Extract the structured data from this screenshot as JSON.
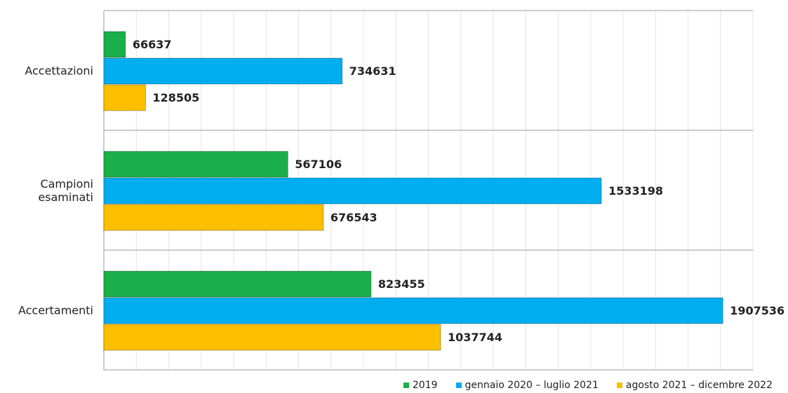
{
  "chart_data": {
    "type": "bar",
    "orientation": "horizontal",
    "categories": [
      "Accettazioni",
      "Campioni esaminati",
      "Accertamenti"
    ],
    "series": [
      {
        "name": "2019",
        "color": "#1aaf4b",
        "values": [
          66637,
          567106,
          823455
        ]
      },
      {
        "name": "gennaio 2020 – luglio 2021",
        "color": "#00aeef",
        "values": [
          734631,
          1533198,
          1907536
        ]
      },
      {
        "name": "agosto 2021 – dicembre 2022",
        "color": "#fbbf00",
        "values": [
          128505,
          676543,
          1037744
        ]
      }
    ],
    "xlim": [
      0,
      2000000
    ],
    "xticks": [
      0,
      100000,
      200000,
      300000,
      400000,
      500000,
      600000,
      700000,
      800000,
      900000,
      1000000,
      1100000,
      1200000,
      1300000,
      1400000,
      1500000,
      1600000,
      1700000,
      1800000,
      1900000,
      2000000
    ],
    "grid": true,
    "legend": "bottom-right"
  }
}
